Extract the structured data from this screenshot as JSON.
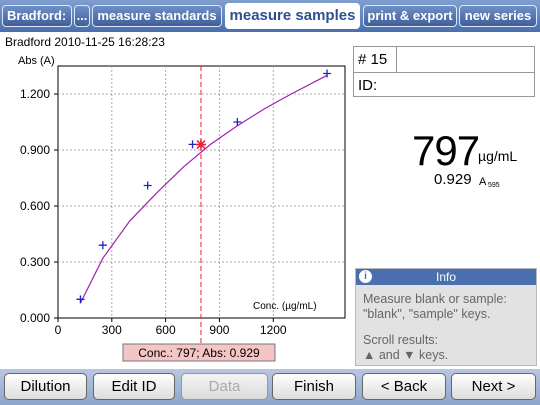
{
  "tabs": {
    "title": "Bradford:",
    "more": "...",
    "standards": "measure standards",
    "samples": "measure samples",
    "print": "print & export",
    "new": "new series"
  },
  "run_label": "Bradford 2010-11-25 16:28:23",
  "sample": {
    "number_label": "# 15",
    "id_label": "ID:",
    "result_value": "797",
    "result_unit": "µg/mL",
    "abs_value": "0.929",
    "abs_unit": "A",
    "abs_unit_sub": "595"
  },
  "info": {
    "title": "Info",
    "icon": "info-icon",
    "line1": "Measure blank or sample:",
    "line2": "\"blank\", \"sample\" keys.",
    "line3": "Scroll results:",
    "line4": "▲ and ▼ keys."
  },
  "toolbar": {
    "dilution": "Dilution",
    "edit_id": "Edit ID",
    "data": "Data",
    "finish": "Finish",
    "back": "< Back",
    "next": "Next >"
  },
  "colors": {
    "accent": "#4a6fae",
    "curve": "#a020b0",
    "standard_marker": "#2222cc",
    "sample_marker": "#e8203a",
    "readout_bg": "#f5c4c4"
  },
  "chart_data": {
    "type": "scatter",
    "ylabel": "Abs (A)",
    "xlabel": "Conc. (µg/mL)",
    "xlim": [
      0,
      1600
    ],
    "ylim": [
      0,
      1.35
    ],
    "xticks": [
      "0",
      "300",
      "600",
      "900",
      "1200"
    ],
    "yticks": [
      "0.000",
      "0.300",
      "0.600",
      "0.900",
      "1.200"
    ],
    "standards": {
      "x": [
        125,
        250,
        500,
        750,
        1000,
        1500
      ],
      "y": [
        0.1,
        0.39,
        0.71,
        0.93,
        1.05,
        1.31
      ]
    },
    "curve": {
      "x": [
        125,
        250,
        400,
        550,
        700,
        850,
        1000,
        1150,
        1300,
        1500
      ],
      "y": [
        0.08,
        0.32,
        0.52,
        0.67,
        0.81,
        0.93,
        1.03,
        1.12,
        1.2,
        1.3
      ]
    },
    "sample": {
      "x": 797,
      "y": 0.929
    },
    "readout": "Conc.: 797; Abs: 0.929"
  }
}
